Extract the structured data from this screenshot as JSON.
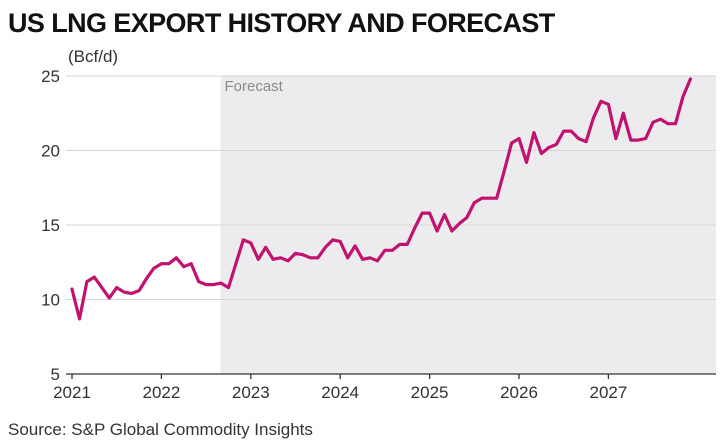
{
  "title": "US LNG EXPORT HISTORY AND FORECAST",
  "source": "Source: S&P Global Commodity Insights",
  "colors": {
    "line": "#C0126E",
    "forecast_shade": "#ECECEE",
    "grid": "#D6D6D6",
    "axis": "#333333"
  },
  "chart_data": {
    "type": "line",
    "title": "US LNG EXPORT HISTORY AND FORECAST",
    "ylabel": "(Bcf/d)",
    "xlabel": "",
    "ylim": [
      5,
      25
    ],
    "xlim": [
      "2021-01",
      "2027-12"
    ],
    "y_ticks": [
      5,
      10,
      15,
      20,
      25
    ],
    "x_ticks": [
      "2021",
      "2022",
      "2023",
      "2024",
      "2025",
      "2026",
      "2027"
    ],
    "grid": "horizontal",
    "annotations": [
      {
        "text": "Forecast",
        "region_start": "2022-09",
        "region_end": "2027-12"
      }
    ],
    "series": [
      {
        "x": [
          "2021-01",
          "2021-02",
          "2021-03",
          "2021-04",
          "2021-05",
          "2021-06",
          "2021-07",
          "2021-08",
          "2021-09",
          "2021-10",
          "2021-11",
          "2021-12",
          "2022-01",
          "2022-02",
          "2022-03",
          "2022-04",
          "2022-05",
          "2022-06",
          "2022-07",
          "2022-08",
          "2022-09",
          "2022-10",
          "2022-11",
          "2022-12",
          "2023-01",
          "2023-02",
          "2023-03",
          "2023-04",
          "2023-05",
          "2023-06",
          "2023-07",
          "2023-08",
          "2023-09",
          "2023-10",
          "2023-11",
          "2023-12",
          "2024-01",
          "2024-02",
          "2024-03",
          "2024-04",
          "2024-05",
          "2024-06",
          "2024-07",
          "2024-08",
          "2024-09",
          "2024-10",
          "2024-11",
          "2024-12",
          "2025-01",
          "2025-02",
          "2025-03",
          "2025-04",
          "2025-05",
          "2025-06",
          "2025-07",
          "2025-08",
          "2025-09",
          "2025-10",
          "2025-11",
          "2025-12",
          "2026-01",
          "2026-02",
          "2026-03",
          "2026-04",
          "2026-05",
          "2026-06",
          "2026-07",
          "2026-08",
          "2026-09",
          "2026-10",
          "2026-11",
          "2026-12",
          "2027-01",
          "2027-02",
          "2027-03",
          "2027-04",
          "2027-05",
          "2027-06",
          "2027-07",
          "2027-08",
          "2027-09",
          "2027-10",
          "2027-11",
          "2027-12"
        ],
        "values": [
          10.7,
          8.7,
          11.2,
          11.5,
          10.8,
          10.1,
          10.8,
          10.5,
          10.4,
          10.6,
          11.4,
          12.1,
          12.4,
          12.4,
          12.8,
          12.2,
          12.4,
          11.2,
          11.0,
          11.0,
          11.1,
          10.8,
          12.4,
          14.0,
          13.8,
          12.7,
          13.5,
          12.7,
          12.8,
          12.6,
          13.1,
          13.0,
          12.8,
          12.8,
          13.5,
          14.0,
          13.9,
          12.8,
          13.6,
          12.7,
          12.8,
          12.6,
          13.3,
          13.3,
          13.7,
          13.7,
          14.8,
          15.8,
          15.8,
          14.6,
          15.7,
          14.6,
          15.1,
          15.5,
          16.5,
          16.8,
          16.8,
          16.8,
          18.6,
          20.5,
          20.8,
          19.2,
          21.2,
          19.8,
          20.2,
          20.4,
          21.3,
          21.3,
          20.8,
          20.6,
          22.2,
          23.3,
          23.1,
          20.8,
          22.5,
          20.7,
          20.7,
          20.8,
          21.9,
          22.1,
          21.8,
          21.8,
          23.6,
          24.8
        ]
      }
    ]
  }
}
